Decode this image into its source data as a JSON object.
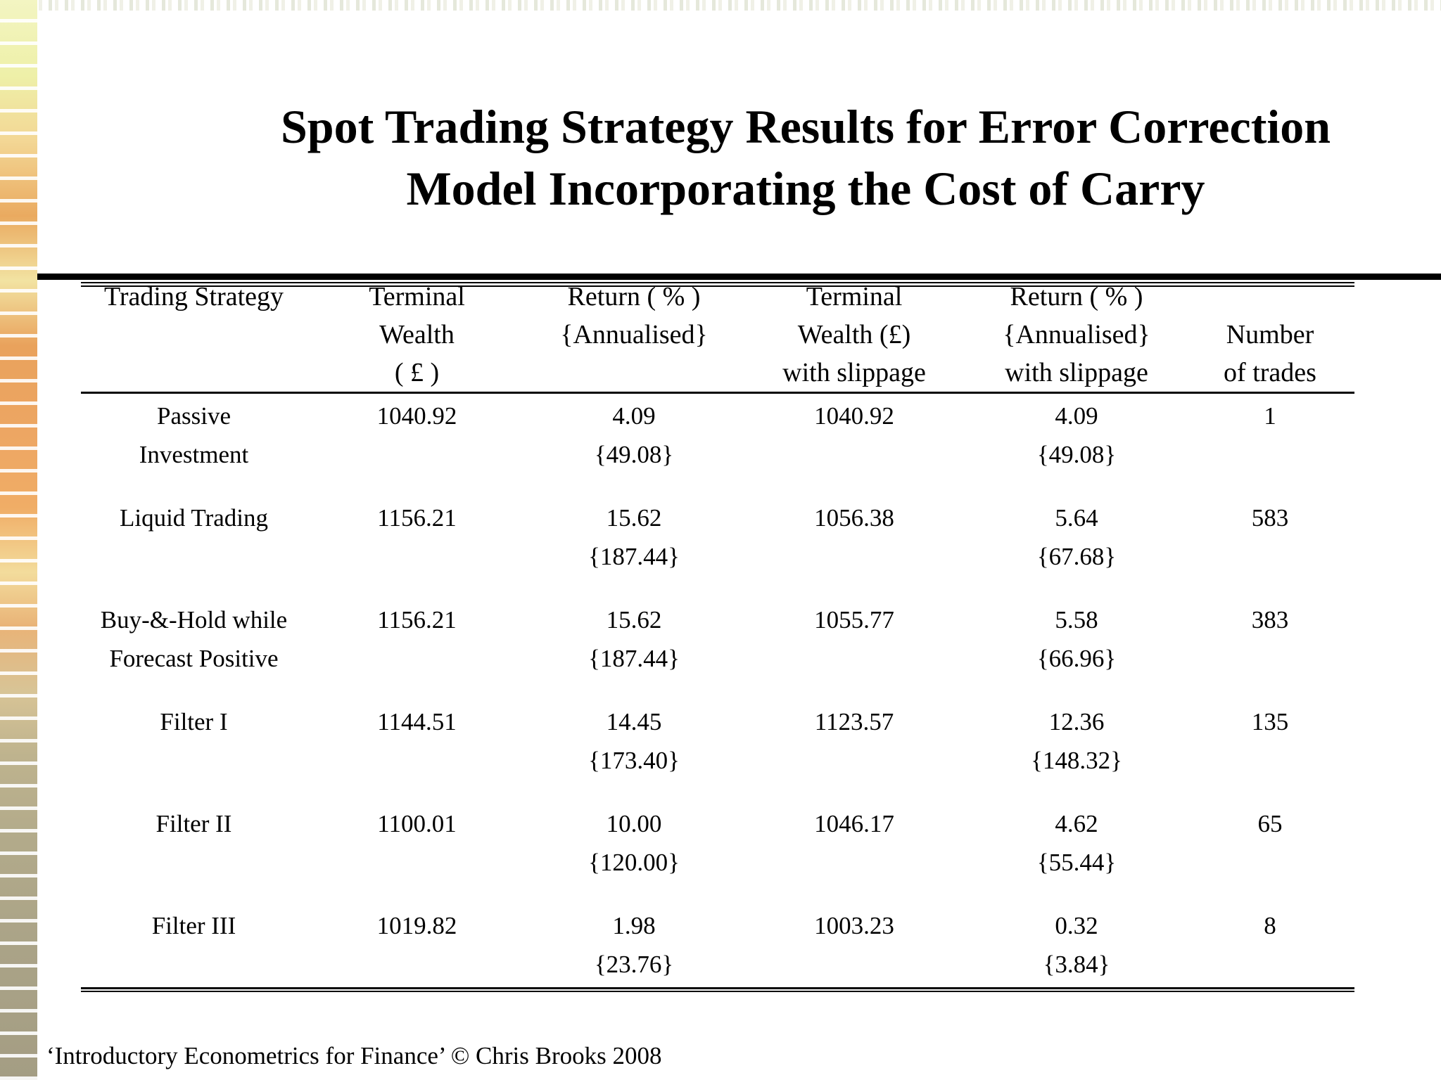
{
  "slide": {
    "title_line1": "Spot Trading Strategy Results for Error Correction",
    "title_line2": "Model Incorporating the Cost of Carry",
    "footer": "‘Introductory Econometrics for Finance’ © Chris Brooks 2008"
  },
  "colors": {
    "text": "#000000",
    "background": "#ffffff",
    "strip_yellow": "#eef0a8",
    "strip_orange": "#e9a25c",
    "strip_olive": "#aaa387"
  },
  "table": {
    "header": {
      "col1_line1": "Trading Strategy",
      "col2_line1": "Terminal",
      "col2_line2": "Wealth",
      "col2_line3": "( £ )",
      "col3_line1": "Return ( % )",
      "col3_line2": "{Annualised}",
      "col4_line1": "Terminal",
      "col4_line2": "Wealth (£)",
      "col4_line3": "with slippage",
      "col5_line1": "Return ( % )",
      "col5_line2": "{Annualised}",
      "col5_line3": "with slippage",
      "col6_line2": "Number",
      "col6_line3": "of trades"
    },
    "rows": [
      {
        "strategy_line1": "Passive",
        "strategy_line2": "Investment",
        "terminal_wealth": "1040.92",
        "return_pct": "4.09",
        "return_annualised": "{49.08}",
        "terminal_wealth_slippage": "1040.92",
        "return_pct_slippage": "4.09",
        "return_annualised_slippage": "{49.08}",
        "num_trades": "1"
      },
      {
        "strategy_line1": "Liquid Trading",
        "strategy_line2": "",
        "terminal_wealth": "1156.21",
        "return_pct": "15.62",
        "return_annualised": "{187.44}",
        "terminal_wealth_slippage": "1056.38",
        "return_pct_slippage": "5.64",
        "return_annualised_slippage": "{67.68}",
        "num_trades": "583"
      },
      {
        "strategy_line1": "Buy-&-Hold while",
        "strategy_line2": "Forecast Positive",
        "terminal_wealth": "1156.21",
        "return_pct": "15.62",
        "return_annualised": "{187.44}",
        "terminal_wealth_slippage": "1055.77",
        "return_pct_slippage": "5.58",
        "return_annualised_slippage": "{66.96}",
        "num_trades": "383"
      },
      {
        "strategy_line1": "Filter I",
        "strategy_line2": "",
        "terminal_wealth": "1144.51",
        "return_pct": "14.45",
        "return_annualised": "{173.40}",
        "terminal_wealth_slippage": "1123.57",
        "return_pct_slippage": "12.36",
        "return_annualised_slippage": "{148.32}",
        "num_trades": "135"
      },
      {
        "strategy_line1": "Filter II",
        "strategy_line2": "",
        "terminal_wealth": "1100.01",
        "return_pct": "10.00",
        "return_annualised": "{120.00}",
        "terminal_wealth_slippage": "1046.17",
        "return_pct_slippage": "4.62",
        "return_annualised_slippage": "{55.44}",
        "num_trades": "65"
      },
      {
        "strategy_line1": "Filter III",
        "strategy_line2": "",
        "terminal_wealth": "1019.82",
        "return_pct": "1.98",
        "return_annualised": "{23.76}",
        "terminal_wealth_slippage": "1003.23",
        "return_pct_slippage": "0.32",
        "return_annualised_slippage": "{3.84}",
        "num_trades": "8"
      }
    ]
  }
}
